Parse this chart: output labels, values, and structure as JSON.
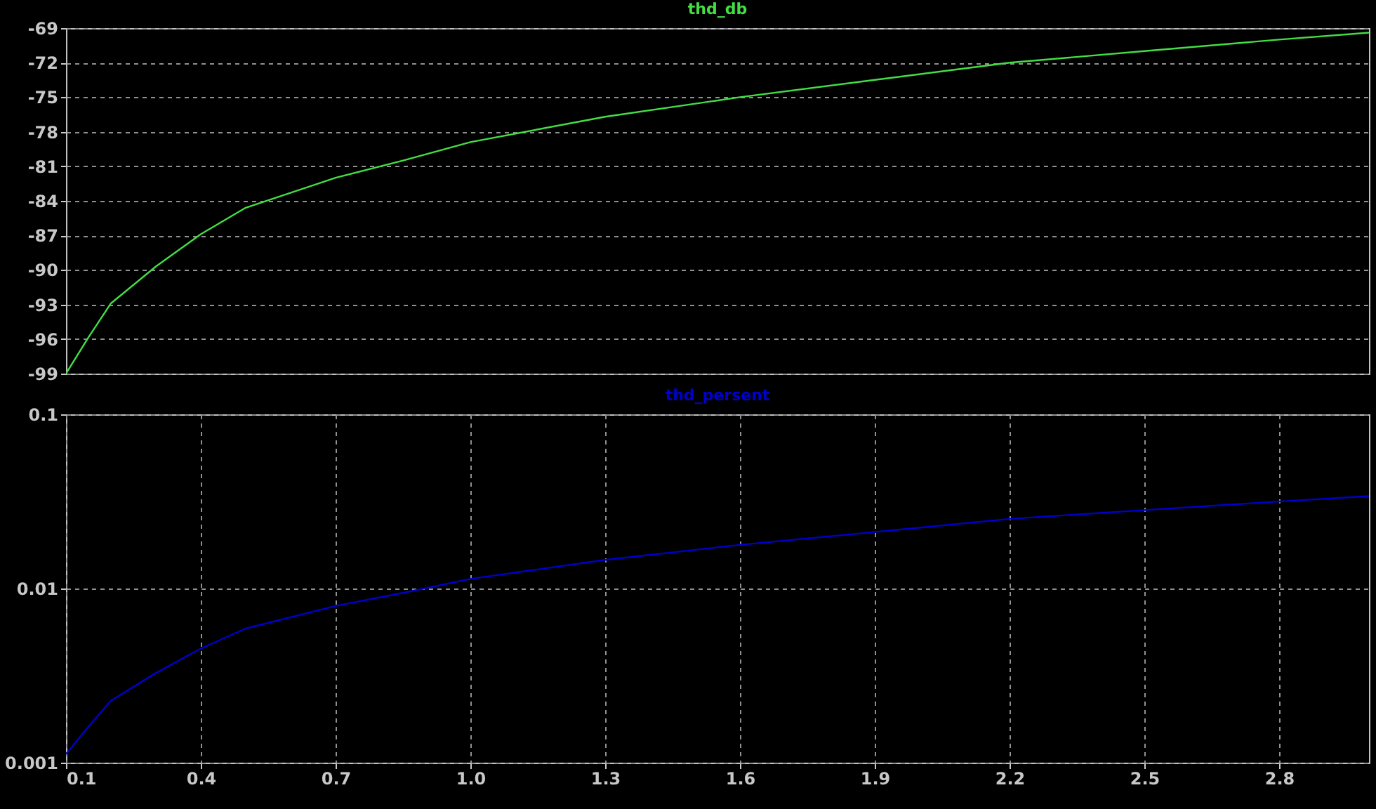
{
  "chart_data": [
    {
      "type": "line",
      "x": [
        0.1,
        0.15,
        0.2,
        0.3,
        0.4,
        0.5,
        0.7,
        0.85,
        1.0,
        1.3,
        1.6,
        1.9,
        2.2,
        2.5,
        2.8,
        3.0
      ],
      "xlim": [
        0.1,
        3.0
      ],
      "ylim": [
        -99,
        -69
      ],
      "yticks": [
        -99,
        -96,
        -93,
        -90,
        -87,
        -84,
        -81,
        -78,
        -75,
        -72,
        -69
      ],
      "grid": true,
      "tick_labels": "y",
      "series": [
        {
          "name": "thd_db",
          "color": "#44dd44",
          "values": [
            -99,
            -95.85,
            -92.9,
            -89.7,
            -86.9,
            -84.6,
            -82,
            -80.5,
            -78.9,
            -76.7,
            -75,
            -73.5,
            -72,
            -71,
            -70,
            -69.4
          ]
        }
      ]
    },
    {
      "type": "line",
      "x": [
        0.1,
        0.15,
        0.2,
        0.3,
        0.4,
        0.5,
        0.7,
        0.85,
        1.0,
        1.3,
        1.6,
        1.9,
        2.2,
        2.5,
        2.8,
        3.0
      ],
      "xlim": [
        0.1,
        3.0
      ],
      "xticks": [
        0.1,
        0.4,
        0.7,
        {
          "value": 1.0,
          "label": "1.0"
        },
        1.3,
        1.6,
        1.9,
        2.2,
        2.5,
        2.8
      ],
      "ylim": [
        0.001,
        0.1
      ],
      "yticks": [
        0.001,
        0.01,
        0.1
      ],
      "log": true,
      "grid": true,
      "series": [
        {
          "name": "thd_persent",
          "color": "#0000cc",
          "values": [
            0.00112,
            0.00161,
            0.00227,
            0.00327,
            0.00452,
            0.00589,
            0.00794,
            0.00944,
            0.01135,
            0.0146,
            0.0178,
            0.0211,
            0.0251,
            0.0282,
            0.0316,
            0.0339
          ]
        }
      ]
    }
  ]
}
